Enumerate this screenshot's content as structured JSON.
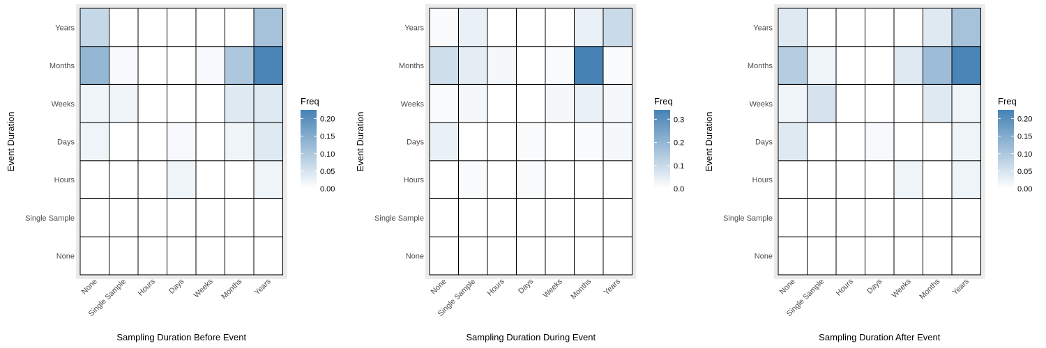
{
  "chart_data": [
    {
      "type": "heatmap",
      "xlabel": "Sampling Duration Before Event",
      "ylabel": "Event Duration",
      "x_categories": [
        "None",
        "Single Sample",
        "Hours",
        "Days",
        "Weeks",
        "Months",
        "Years"
      ],
      "y_categories": [
        "None",
        "Single Sample",
        "Hours",
        "Days",
        "Weeks",
        "Months",
        "Years"
      ],
      "values": [
        [
          0,
          0,
          0,
          0,
          0,
          0,
          0
        ],
        [
          0,
          0,
          0,
          0,
          0,
          0,
          0
        ],
        [
          0,
          0,
          0,
          0.02,
          0,
          0,
          0.02
        ],
        [
          0.02,
          0,
          0,
          0.01,
          0,
          0.02,
          0.04
        ],
        [
          0.02,
          0.02,
          0,
          0,
          0,
          0.04,
          0.04
        ],
        [
          0.13,
          0.01,
          0,
          0,
          0.01,
          0.1,
          0.22
        ],
        [
          0.07,
          0,
          0,
          0,
          0,
          0,
          0.11
        ]
      ],
      "legend": {
        "title": "Freq",
        "ticks": [
          "0.00",
          "0.05",
          "0.10",
          "0.15",
          "0.20"
        ],
        "tick_values": [
          0,
          0.05,
          0.1,
          0.15,
          0.2
        ],
        "max": 0.225,
        "placement": "right"
      },
      "grid": true
    },
    {
      "type": "heatmap",
      "xlabel": "Sampling Duration During Event",
      "ylabel": "Event Duration",
      "x_categories": [
        "None",
        "Single Sample",
        "Hours",
        "Days",
        "Weeks",
        "Months",
        "Years"
      ],
      "y_categories": [
        "None",
        "Single Sample",
        "Hours",
        "Days",
        "Weeks",
        "Months",
        "Years"
      ],
      "values": [
        [
          0,
          0,
          0,
          0,
          0,
          0,
          0
        ],
        [
          0,
          0,
          0,
          0,
          0,
          0,
          0
        ],
        [
          0,
          0.01,
          0,
          0.01,
          0,
          0,
          0
        ],
        [
          0.04,
          0,
          0,
          0.01,
          0,
          0.01,
          0.02
        ],
        [
          0.01,
          0.02,
          0,
          0,
          0.02,
          0.04,
          0.02
        ],
        [
          0.09,
          0.05,
          0.02,
          0,
          0.01,
          0.34,
          0.01
        ],
        [
          0.01,
          0.04,
          0,
          0,
          0,
          0.04,
          0.1
        ]
      ],
      "legend": {
        "title": "Freq",
        "ticks": [
          "0.0",
          "0.1",
          "0.2",
          "0.3"
        ],
        "tick_values": [
          0,
          0.1,
          0.2,
          0.3
        ],
        "max": 0.34,
        "placement": "right"
      },
      "grid": true
    },
    {
      "type": "heatmap",
      "xlabel": "Sampling Duration After Event",
      "ylabel": "Event Duration",
      "x_categories": [
        "None",
        "Single Sample",
        "Hours",
        "Days",
        "Weeks",
        "Months",
        "Years"
      ],
      "y_categories": [
        "None",
        "Single Sample",
        "Hours",
        "Days",
        "Weeks",
        "Months",
        "Years"
      ],
      "values": [
        [
          0,
          0,
          0,
          0,
          0,
          0,
          0
        ],
        [
          0,
          0,
          0,
          0,
          0,
          0,
          0
        ],
        [
          0,
          0,
          0,
          0,
          0.02,
          0,
          0.02
        ],
        [
          0.04,
          0,
          0,
          0.01,
          0,
          0,
          0.02
        ],
        [
          0.02,
          0.05,
          0,
          0,
          0,
          0.04,
          0.02
        ],
        [
          0.09,
          0.02,
          0,
          0,
          0.04,
          0.12,
          0.22
        ],
        [
          0.04,
          0,
          0,
          0,
          0,
          0.04,
          0.11
        ]
      ],
      "legend": {
        "title": "Freq",
        "ticks": [
          "0.00",
          "0.05",
          "0.10",
          "0.15",
          "0.20"
        ],
        "tick_values": [
          0,
          0.05,
          0.1,
          0.15,
          0.2
        ],
        "max": 0.225,
        "placement": "right"
      },
      "grid": true
    }
  ],
  "colors": {
    "low": "#ffffff",
    "high": "#4682b4",
    "panel_background": "#ebebeb",
    "tile_border": "#000000"
  }
}
